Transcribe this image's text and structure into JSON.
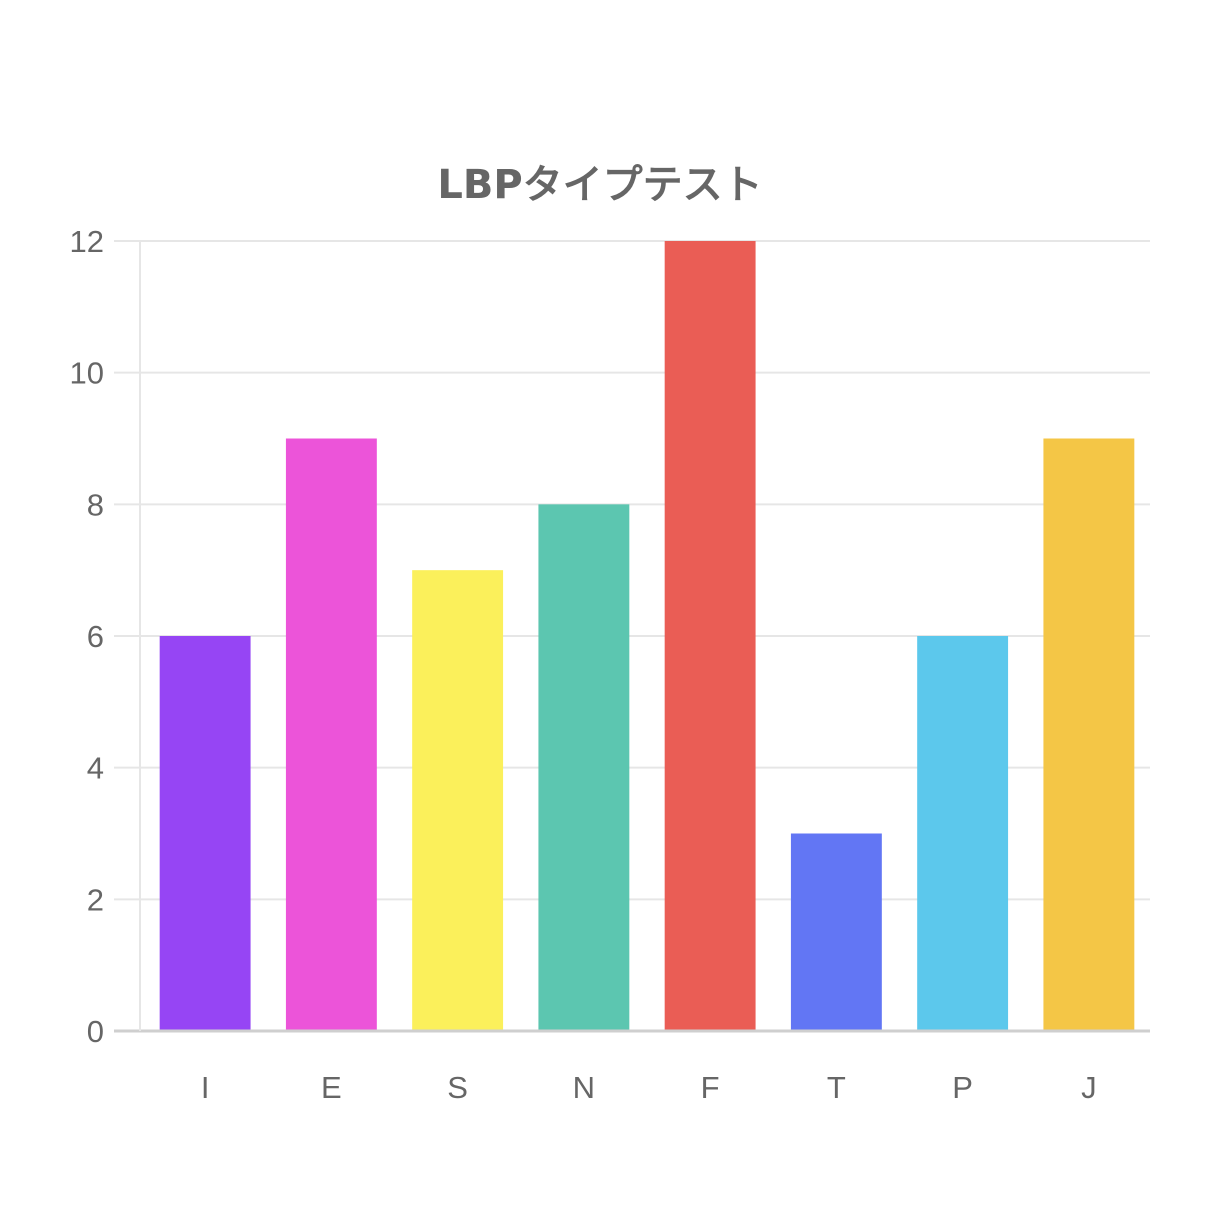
{
  "chart_data": {
    "type": "bar",
    "title": "LBPタイプテスト",
    "categories": [
      "I",
      "E",
      "S",
      "N",
      "F",
      "T",
      "P",
      "J"
    ],
    "values": [
      6,
      9,
      7,
      8,
      12,
      3,
      6,
      9
    ],
    "colors": [
      "#9645F4",
      "#EC54D9",
      "#FBF05B",
      "#5CC6B0",
      "#EA5D55",
      "#6276F4",
      "#5CC8EC",
      "#F4C646"
    ],
    "ylim": [
      0,
      12
    ],
    "yticks": [
      0,
      2,
      4,
      6,
      8,
      10,
      12
    ],
    "xlabel": "",
    "ylabel": "",
    "grid": true,
    "legend": "none"
  }
}
